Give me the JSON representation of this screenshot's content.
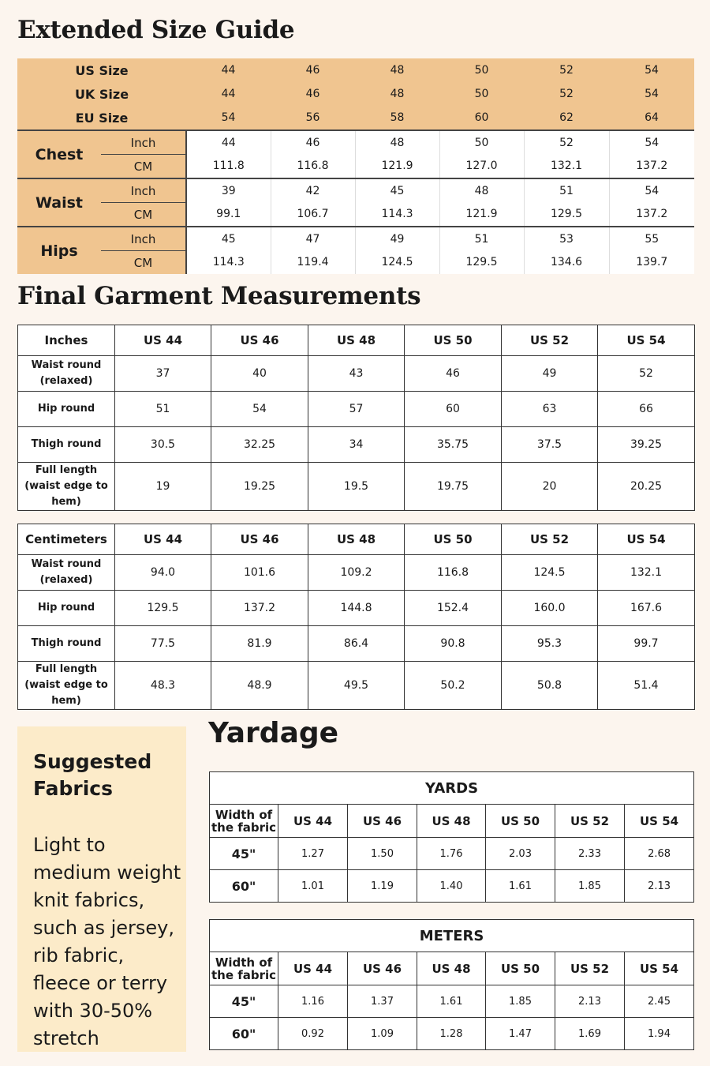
{
  "size_guide": {
    "title": "Extended Size Guide",
    "header_rows": [
      {
        "label": "US Size",
        "values": [
          "44",
          "46",
          "48",
          "50",
          "52",
          "54"
        ]
      },
      {
        "label": "UK Size",
        "values": [
          "44",
          "46",
          "48",
          "50",
          "52",
          "54"
        ]
      },
      {
        "label": "EU Size",
        "values": [
          "54",
          "56",
          "58",
          "60",
          "62",
          "64"
        ]
      }
    ],
    "groups": [
      {
        "label": "Chest",
        "rows": [
          {
            "unit": "Inch",
            "values": [
              "44",
              "46",
              "48",
              "50",
              "52",
              "54"
            ]
          },
          {
            "unit": "CM",
            "values": [
              "111.8",
              "116.8",
              "121.9",
              "127.0",
              "132.1",
              "137.2"
            ]
          }
        ]
      },
      {
        "label": "Waist",
        "rows": [
          {
            "unit": "Inch",
            "values": [
              "39",
              "42",
              "45",
              "48",
              "51",
              "54"
            ]
          },
          {
            "unit": "CM",
            "values": [
              "99.1",
              "106.7",
              "114.3",
              "121.9",
              "129.5",
              "137.2"
            ]
          }
        ]
      },
      {
        "label": "Hips",
        "rows": [
          {
            "unit": "Inch",
            "values": [
              "45",
              "47",
              "49",
              "51",
              "53",
              "55"
            ]
          },
          {
            "unit": "CM",
            "values": [
              "114.3",
              "119.4",
              "124.5",
              "129.5",
              "134.6",
              "139.7"
            ]
          }
        ]
      }
    ]
  },
  "garment": {
    "title": "Final Garment Measurements",
    "tables": [
      {
        "unit_header": "Inches",
        "columns": [
          "US 44",
          "US 46",
          "US 48",
          "US  50",
          "US 52",
          "US 54"
        ],
        "rows": [
          {
            "label": "Waist round (relaxed)",
            "values": [
              "37",
              "40",
              "43",
              "46",
              "49",
              "52"
            ]
          },
          {
            "label": "Hip round",
            "values": [
              "51",
              "54",
              "57",
              "60",
              "63",
              "66"
            ]
          },
          {
            "label": "Thigh round",
            "values": [
              "30.5",
              "32.25",
              "34",
              "35.75",
              "37.5",
              "39.25"
            ]
          },
          {
            "label": "Full length (waist edge to hem)",
            "values": [
              "19",
              "19.25",
              "19.5",
              "19.75",
              "20",
              "20.25"
            ]
          }
        ]
      },
      {
        "unit_header": "Centimeters",
        "columns": [
          "US 44",
          "US 46",
          "US 48",
          "US  50",
          "US 52",
          "US 54"
        ],
        "rows": [
          {
            "label": "Waist round (relaxed)",
            "values": [
              "94.0",
              "101.6",
              "109.2",
              "116.8",
              "124.5",
              "132.1"
            ]
          },
          {
            "label": "Hip round",
            "values": [
              "129.5",
              "137.2",
              "144.8",
              "152.4",
              "160.0",
              "167.6"
            ]
          },
          {
            "label": "Thigh round",
            "values": [
              "77.5",
              "81.9",
              "86.4",
              "90.8",
              "95.3",
              "99.7"
            ]
          },
          {
            "label": "Full length (waist edge to hem)",
            "values": [
              "48.3",
              "48.9",
              "49.5",
              "50.2",
              "50.8",
              "51.4"
            ]
          }
        ]
      }
    ]
  },
  "fabrics": {
    "title": "Suggested Fabrics",
    "text": "Light to medium weight knit fabrics, such as jersey, rib fabric, fleece or terry with 30-50% stretch"
  },
  "yardage": {
    "title": "Yardage",
    "tables": [
      {
        "title": "YARDS",
        "width_header": "Width of the fabric",
        "columns": [
          "US 44",
          "US 46",
          "US 48",
          "US  50",
          "US 52",
          "US 54"
        ],
        "rows": [
          {
            "label": "45\"",
            "values": [
              "1.27",
              "1.50",
              "1.76",
              "2.03",
              "2.33",
              "2.68"
            ]
          },
          {
            "label": "60\"",
            "values": [
              "1.01",
              "1.19",
              "1.40",
              "1.61",
              "1.85",
              "2.13"
            ]
          }
        ]
      },
      {
        "title": "METERS",
        "width_header": "Width of the fabric",
        "columns": [
          "US 44",
          "US 46",
          "US 48",
          "US  50",
          "US 52",
          "US 54"
        ],
        "rows": [
          {
            "label": "45\"",
            "values": [
              "1.16",
              "1.37",
              "1.61",
              "1.85",
              "2.13",
              "2.45"
            ]
          },
          {
            "label": "60\"",
            "values": [
              "0.92",
              "1.09",
              "1.28",
              "1.47",
              "1.69",
              "1.94"
            ]
          }
        ]
      }
    ]
  },
  "colors": {
    "background": "#fcf5ee",
    "header_fill": "#f0c590",
    "fabrics_fill": "#fcebc9"
  }
}
